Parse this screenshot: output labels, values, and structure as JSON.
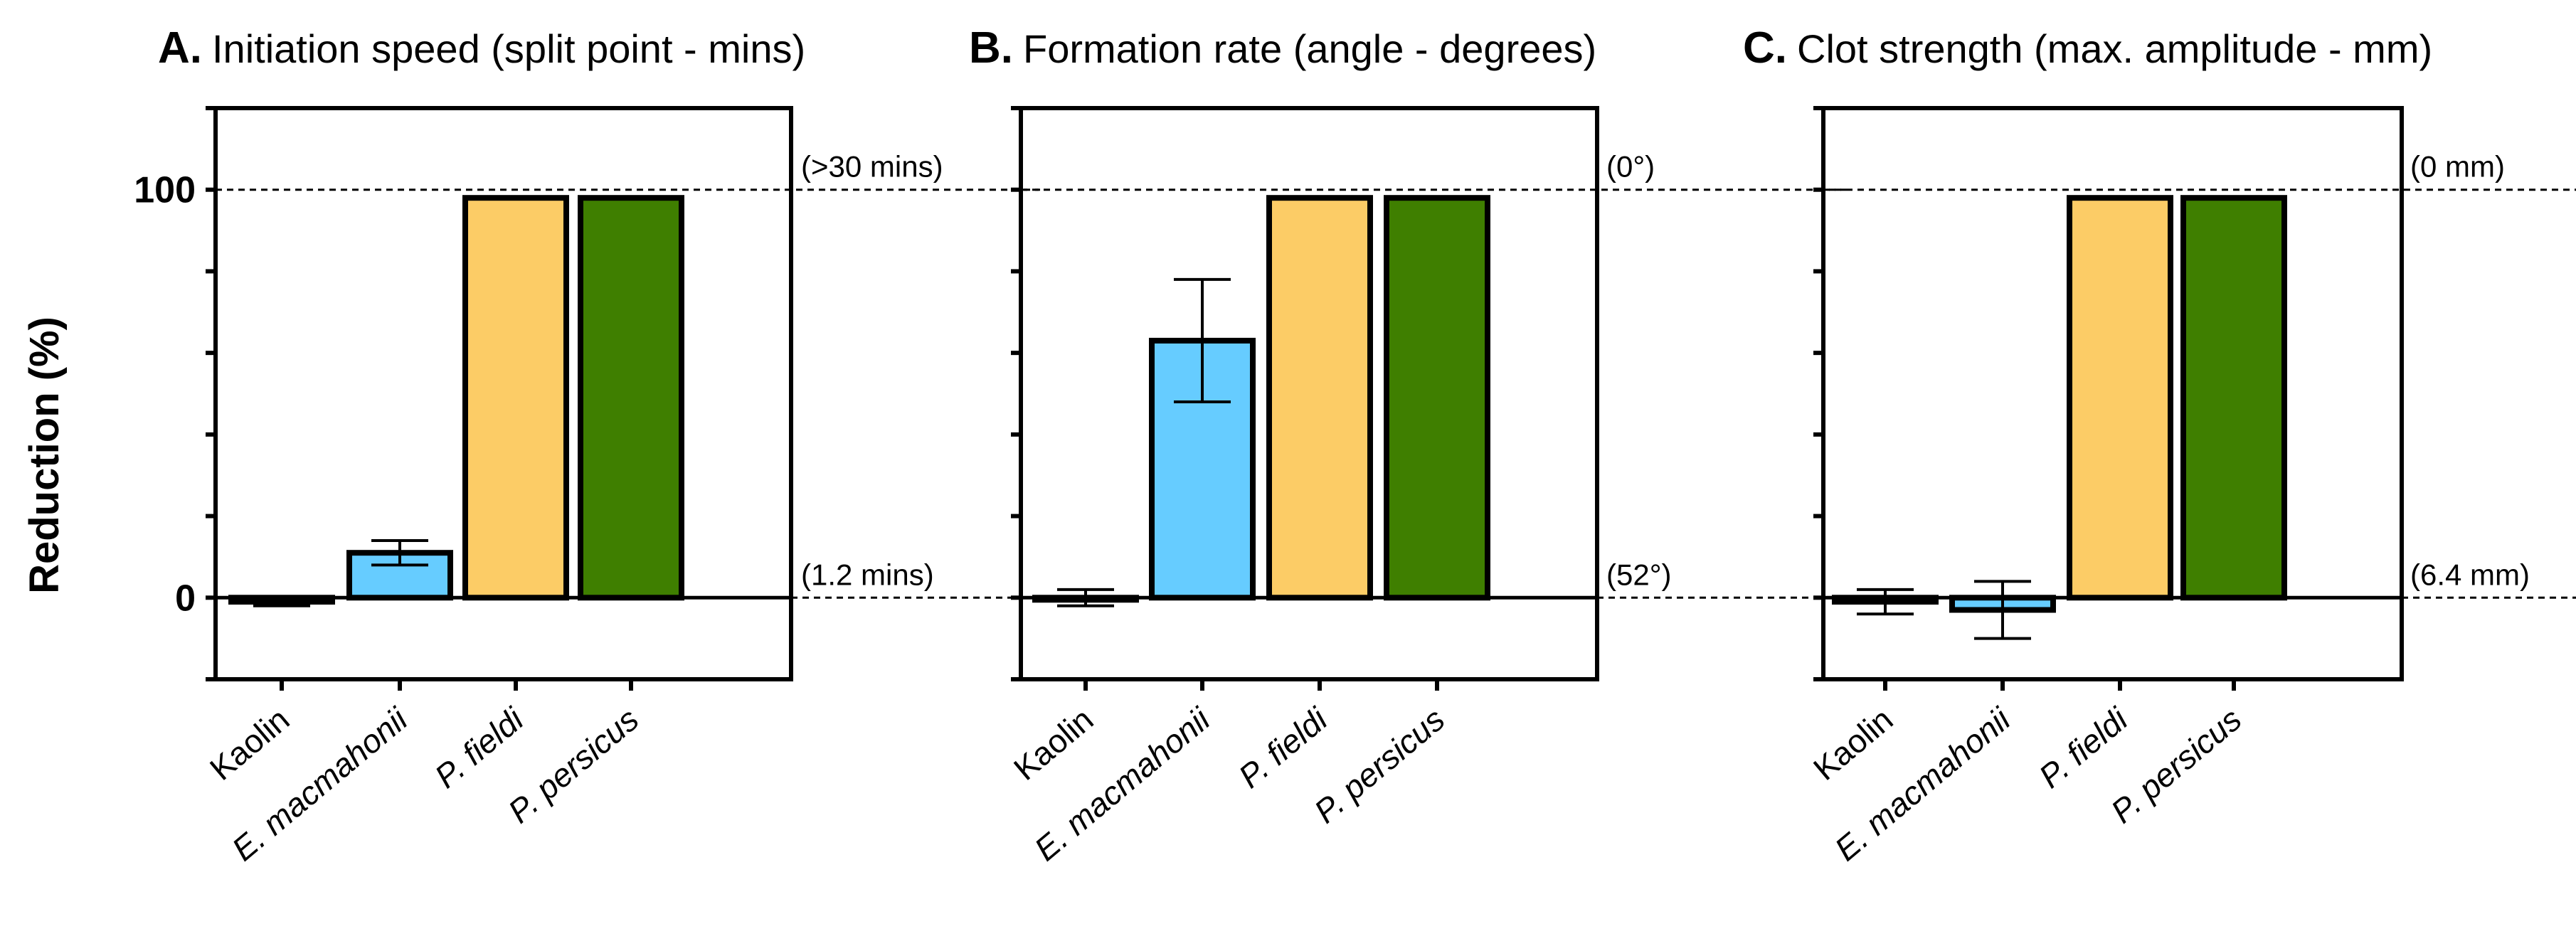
{
  "figure": {
    "y_axis_label": "Reduction  (%)",
    "y_tick_labels": [
      "100",
      "0"
    ]
  },
  "chart_data": [
    {
      "type": "bar",
      "panel": "A.",
      "title": "Initiation speed (split point - mins)",
      "ylabel": "Reduction  (%)",
      "ylim": [
        -20,
        120
      ],
      "yticks": [
        -20,
        0,
        20,
        40,
        60,
        80,
        100,
        120
      ],
      "labeled_yticks": [
        0,
        100
      ],
      "categories": [
        "Kaolin",
        "E. macmahonii",
        "P. fieldi",
        "P. persicus"
      ],
      "values": [
        -1,
        11,
        98,
        98
      ],
      "errors": [
        1,
        3,
        null,
        null
      ],
      "colors": [
        "#ffffff",
        "#66ccff",
        "#fccc66",
        "#3f7f00"
      ],
      "reference_lines": [
        {
          "value": 100,
          "label": "(>30 mins)"
        },
        {
          "value": 0,
          "label": "(1.2 mins)"
        }
      ]
    },
    {
      "type": "bar",
      "panel": "B.",
      "title": "Formation rate (angle - degrees)",
      "ylabel": "Reduction  (%)",
      "ylim": [
        -20,
        120
      ],
      "yticks": [
        -20,
        0,
        20,
        40,
        60,
        80,
        100,
        120
      ],
      "labeled_yticks": [],
      "categories": [
        "Kaolin",
        "E. macmahonii",
        "P. fieldi",
        "P. persicus"
      ],
      "values": [
        0,
        63,
        98,
        98
      ],
      "errors": [
        2,
        15,
        null,
        null
      ],
      "colors": [
        "#ffffff",
        "#66ccff",
        "#fccc66",
        "#3f7f00"
      ],
      "reference_lines": [
        {
          "value": 100,
          "label": "(0°)"
        },
        {
          "value": 0,
          "label": "(52°)"
        }
      ]
    },
    {
      "type": "bar",
      "panel": "C.",
      "title": "Clot strength (max. amplitude - mm)",
      "ylabel": "Reduction  (%)",
      "ylim": [
        -20,
        120
      ],
      "yticks": [
        -20,
        0,
        20,
        40,
        60,
        80,
        100,
        120
      ],
      "labeled_yticks": [],
      "categories": [
        "Kaolin",
        "E. macmahonii",
        "P. fieldi",
        "P. persicus"
      ],
      "values": [
        -1,
        -3,
        98,
        98
      ],
      "errors": [
        3,
        7,
        null,
        null
      ],
      "colors": [
        "#ffffff",
        "#66ccff",
        "#fccc66",
        "#3f7f00"
      ],
      "reference_lines": [
        {
          "value": 100,
          "label": "(0 mm)"
        },
        {
          "value": 0,
          "label": "(6.4 mm)"
        }
      ]
    }
  ]
}
